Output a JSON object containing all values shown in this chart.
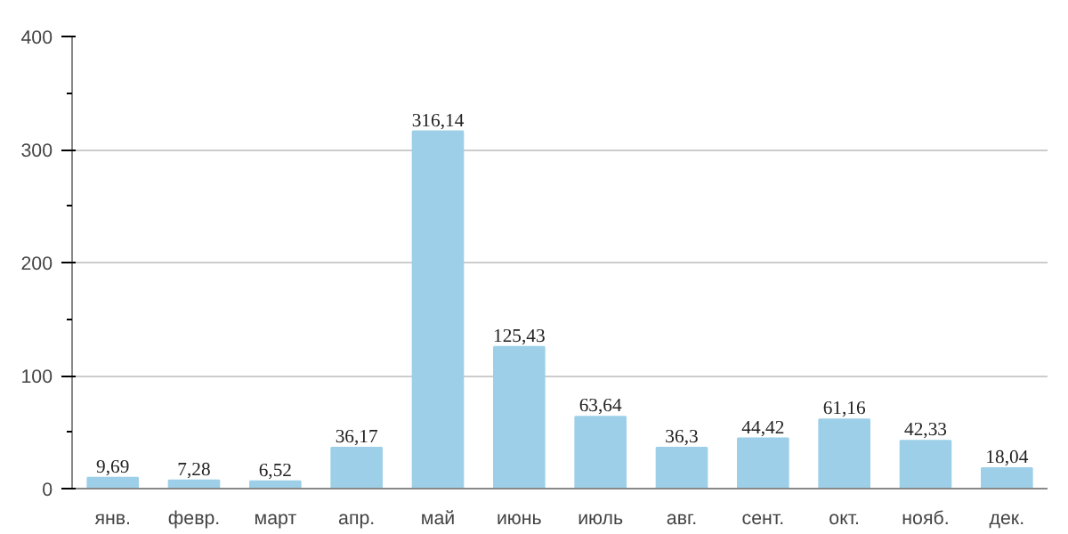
{
  "chart_data": {
    "type": "bar",
    "categories": [
      "янв.",
      "февр.",
      "март",
      "апр.",
      "май",
      "июнь",
      "июль",
      "авг.",
      "сент.",
      "окт.",
      "нояб.",
      "дек."
    ],
    "values": [
      9.69,
      7.28,
      6.52,
      36.17,
      316.14,
      125.43,
      63.64,
      36.3,
      44.42,
      61.16,
      42.33,
      18.04
    ],
    "value_labels": [
      "9,69",
      "7,28",
      "6,52",
      "36,17",
      "316,14",
      "125,43",
      "63,64",
      "36,3",
      "44,42",
      "61,16",
      "42,33",
      "18,04"
    ],
    "color": "#9dd0e8",
    "ylim": [
      0,
      400
    ],
    "yticks": [
      0,
      {
        "value": 50,
        "label": null
      },
      100,
      {
        "value": 150,
        "label": null
      },
      200,
      {
        "value": 250,
        "label": null
      },
      300,
      {
        "value": 350,
        "label": null
      },
      400
    ],
    "grid": "y"
  }
}
